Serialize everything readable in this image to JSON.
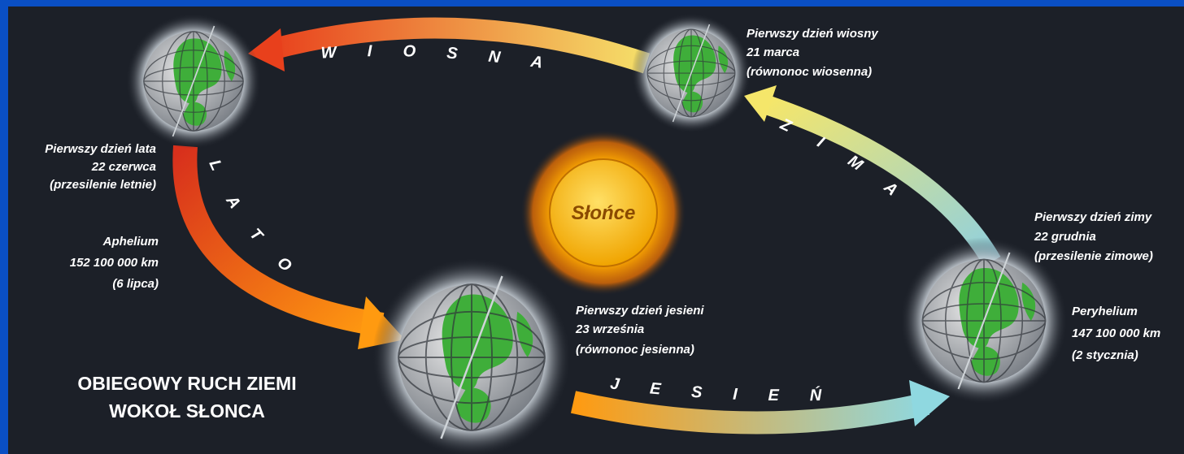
{
  "title": [
    "OBIEGOWY RUCH ZIEMI",
    "WOKOŁ SŁONCA"
  ],
  "sun": "Słońce",
  "seasons": [
    "WIOSNA",
    "LATO",
    "JESIEŃ",
    "ZIMA"
  ],
  "points": {
    "summer": [
      "Pierwszy dzień lata",
      "22 czerwca",
      "(przesilenie letnie)"
    ],
    "aphelion": [
      "Aphelium",
      "152 100 000 km",
      "(6 lipca)"
    ],
    "spring": [
      "Pierwszy dzień wiosny",
      "21 marca",
      "(równonoc wiosenna)"
    ],
    "autumn": [
      "Pierwszy dzień jesieni",
      "23 września",
      "(równonoc jesienna)"
    ],
    "winter": [
      "Pierwszy dzień zimy",
      "22 grudnia",
      "(przesilenie zimowe)"
    ],
    "perihelion": [
      "Peryhelium",
      "147 100 000 km",
      "(2 stycznia)"
    ]
  }
}
